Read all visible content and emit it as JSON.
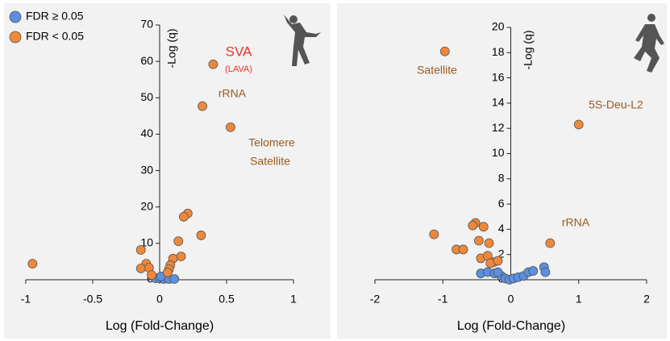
{
  "chart_data": [
    {
      "type": "scatter",
      "xlabel": "Log (Fold-Change)",
      "ylabel": "-Log (q)",
      "xlim": [
        -1,
        1
      ],
      "xticks": [
        -1,
        -0.5,
        0,
        0.5,
        1
      ],
      "ylim": [
        0,
        70
      ],
      "yticks": [
        0,
        10,
        20,
        30,
        40,
        50,
        60,
        70
      ],
      "legend": "top-left",
      "series": [
        {
          "name": "FDR ≥ 0.05",
          "color": "#5b8fe0",
          "x": [
            -0.03,
            0,
            0.03,
            0.07,
            0.11,
            0.01
          ],
          "y": [
            0.4,
            0.4,
            0.2,
            0.2,
            0.2,
            0.9
          ]
        },
        {
          "name": "FDR < 0.05",
          "color": "#f0883a",
          "x": [
            0.4,
            0.32,
            0.53,
            0.21,
            0.18,
            0.31,
            0.14,
            0.16,
            0.1,
            -0.14,
            -0.95,
            -0.1,
            -0.08,
            0.08,
            0.07,
            -0.14,
            -0.06,
            0.06
          ],
          "y": [
            59.2,
            47.7,
            41.9,
            18.2,
            17.3,
            12.2,
            10.6,
            6.4,
            5.8,
            8.2,
            4.4,
            4.4,
            3.3,
            4.0,
            2.9,
            3.1,
            1.3,
            2.0
          ]
        }
      ],
      "annotations": [
        {
          "text": "SVA",
          "color": "#e8322a"
        },
        {
          "text": "(LAVA)",
          "color": "#e8322a"
        },
        {
          "text": "rRNA",
          "color": "#9c5a1c"
        },
        {
          "text": "Telomere",
          "color": "#9c5a1c"
        },
        {
          "text": "Satellite",
          "color": "#9c5a1c"
        }
      ]
    },
    {
      "type": "scatter",
      "xlabel": "Log (Fold-Change)",
      "ylabel": "-Log (q)",
      "xlim": [
        -2,
        2
      ],
      "xticks": [
        -2,
        -1,
        0,
        1,
        2
      ],
      "ylim": [
        0,
        20
      ],
      "yticks": [
        0,
        2,
        4,
        6,
        8,
        10,
        12,
        14,
        16,
        18,
        20
      ],
      "series": [
        {
          "color": "#5b8fe0",
          "x": [
            -0.44,
            -0.34,
            -0.24,
            -0.14,
            -0.08,
            -0.02,
            0.04,
            0.11,
            0.19,
            0.26,
            0.33,
            0.49,
            0.51,
            -0.19
          ],
          "y": [
            0.5,
            0.6,
            0.5,
            0.3,
            0.1,
            0,
            0.1,
            0.2,
            0.3,
            0.6,
            0.7,
            1.0,
            0.6,
            0.6
          ]
        },
        {
          "color": "#f0883a",
          "x": [
            -0.97,
            1.0,
            0.58,
            -1.13,
            -0.8,
            -0.7,
            -0.52,
            -0.56,
            -0.4,
            -0.47,
            -0.32,
            -0.44,
            -0.34,
            -0.25,
            -0.3,
            -0.19
          ],
          "y": [
            18.1,
            12.3,
            2.9,
            3.6,
            2.4,
            2.4,
            4.5,
            4.3,
            4.2,
            3.1,
            2.9,
            1.7,
            1.9,
            1.4,
            1.3,
            1.5
          ]
        }
      ],
      "annotations": [
        {
          "text": "Satellite",
          "color": "#9c5a1c"
        },
        {
          "text": "5S-Deu-L2",
          "color": "#9c5a1c"
        },
        {
          "text": "rRNA",
          "color": "#9c5a1c"
        }
      ]
    }
  ]
}
